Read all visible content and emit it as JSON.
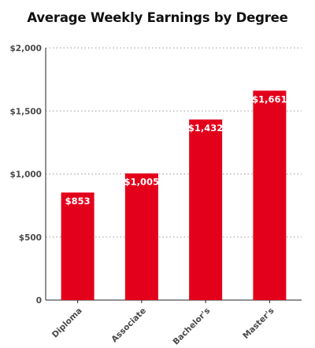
{
  "chart_data": {
    "type": "bar",
    "title": "Average Weekly Earnings by Degree",
    "categories": [
      "Diploma",
      "Associate",
      "Bachelor's",
      "Master's"
    ],
    "values": [
      853,
      1005,
      1432,
      1661
    ],
    "data_labels": [
      "$853",
      "$1,005",
      "$1,432",
      "$1,661"
    ],
    "ylim": [
      0,
      2000
    ],
    "yticks": [
      0,
      500,
      1000,
      1500,
      2000
    ],
    "ytick_labels": [
      "0",
      "$500",
      "$1,000",
      "$1,500",
      "$2,000"
    ],
    "xlabel": "",
    "ylabel": "",
    "grid": "horizontal dotted",
    "legend": "none",
    "bar_color": "#e3001b"
  }
}
